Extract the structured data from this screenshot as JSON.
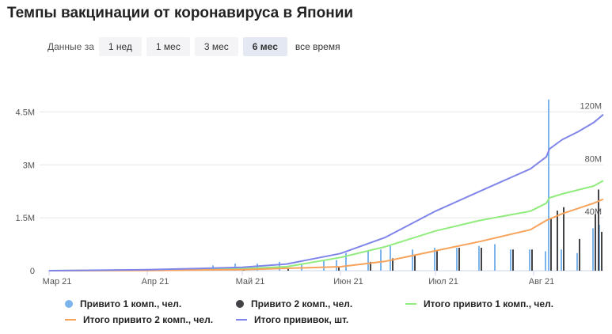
{
  "header": {
    "title": "Темпы вакцинации от коронавируса в Японии"
  },
  "range_selector": {
    "label": "Данные за",
    "options": [
      "1 нед",
      "1 мес",
      "3 мес",
      "6 мес",
      "все время"
    ],
    "selected": "6 мес"
  },
  "colors": {
    "dose1": "#7cb5ec",
    "dose2": "#434348",
    "total1": "#90ed7d",
    "total2": "#f7a35c",
    "all": "#8085e9",
    "grid": "#e6e6e6",
    "axis_text": "#555555"
  },
  "chart_data": {
    "type": "bar+line",
    "x_ticks": [
      "Мар 21",
      "Апр 21",
      "Май 21",
      "Июн 21",
      "Июл 21",
      "Авг 21"
    ],
    "x_range": [
      "2021-03-01",
      "2021-08-23"
    ],
    "y_left": {
      "ticks": [
        "0",
        "1.5M",
        "3M",
        "4.5M"
      ],
      "values": [
        0,
        1500000,
        3000000,
        4500000
      ],
      "range": [
        0,
        4800000
      ]
    },
    "y_right": {
      "ticks": [
        "40M",
        "80M",
        "120M"
      ],
      "values": [
        40000000,
        80000000,
        120000000
      ],
      "range": [
        0,
        128000000
      ]
    },
    "legend": [
      {
        "key": "dose1",
        "label": "Привито 1 комп., чел.",
        "symbol": "dot"
      },
      {
        "key": "dose2",
        "label": "Привито 2 комп., чел.",
        "symbol": "dot"
      },
      {
        "key": "total1",
        "label": "Итого привито 1 комп., чел.",
        "symbol": "line"
      },
      {
        "key": "total2",
        "label": "Итого привито 2 комп., чел.",
        "symbol": "line"
      },
      {
        "key": "all",
        "label": "Итого прививок, шт.",
        "symbol": "line"
      }
    ],
    "series": [
      {
        "name": "Привито 1 комп., чел.",
        "key": "dose1",
        "axis": "left",
        "kind": "bar",
        "points": [
          [
            "2021-03-01",
            5000
          ],
          [
            "2021-03-15",
            20000
          ],
          [
            "2021-04-01",
            30000
          ],
          [
            "2021-04-15",
            60000
          ],
          [
            "2021-04-22",
            150000
          ],
          [
            "2021-04-29",
            200000
          ],
          [
            "2021-05-06",
            200000
          ],
          [
            "2021-05-13",
            250000
          ],
          [
            "2021-05-20",
            200000
          ],
          [
            "2021-05-27",
            280000
          ],
          [
            "2021-05-31",
            300000
          ],
          [
            "2021-06-03",
            500000
          ],
          [
            "2021-06-10",
            550000
          ],
          [
            "2021-06-14",
            600000
          ],
          [
            "2021-06-17",
            700000
          ],
          [
            "2021-06-24",
            600000
          ],
          [
            "2021-07-01",
            650000
          ],
          [
            "2021-07-08",
            650000
          ],
          [
            "2021-07-15",
            700000
          ],
          [
            "2021-07-20",
            750000
          ],
          [
            "2021-07-25",
            600000
          ],
          [
            "2021-07-31",
            600000
          ],
          [
            "2021-08-05",
            550000
          ],
          [
            "2021-08-06",
            4850000
          ],
          [
            "2021-08-10",
            600000
          ],
          [
            "2021-08-15",
            500000
          ],
          [
            "2021-08-20",
            1200000
          ],
          [
            "2021-08-22",
            1300000
          ]
        ]
      },
      {
        "name": "Привито 2 комп., чел.",
        "key": "dose2",
        "axis": "left",
        "kind": "bar",
        "points": [
          [
            "2021-03-01",
            3000
          ],
          [
            "2021-03-15",
            10000
          ],
          [
            "2021-04-01",
            20000
          ],
          [
            "2021-04-15",
            30000
          ],
          [
            "2021-05-01",
            50000
          ],
          [
            "2021-05-15",
            80000
          ],
          [
            "2021-05-31",
            120000
          ],
          [
            "2021-06-10",
            250000
          ],
          [
            "2021-06-17",
            350000
          ],
          [
            "2021-06-24",
            450000
          ],
          [
            "2021-07-01",
            550000
          ],
          [
            "2021-07-08",
            650000
          ],
          [
            "2021-07-15",
            650000
          ],
          [
            "2021-07-25",
            600000
          ],
          [
            "2021-07-31",
            600000
          ],
          [
            "2021-08-06",
            1500000
          ],
          [
            "2021-08-08",
            1700000
          ],
          [
            "2021-08-10",
            1800000
          ],
          [
            "2021-08-15",
            900000
          ],
          [
            "2021-08-20",
            1600000
          ],
          [
            "2021-08-21",
            2300000
          ],
          [
            "2021-08-22",
            1100000
          ]
        ]
      },
      {
        "name": "Итого привито 1 комп., чел.",
        "key": "total1",
        "axis": "right",
        "kind": "line",
        "points": [
          [
            "2021-03-01",
            0
          ],
          [
            "2021-04-01",
            500000
          ],
          [
            "2021-05-01",
            1500000
          ],
          [
            "2021-05-15",
            3000000
          ],
          [
            "2021-06-01",
            10000000
          ],
          [
            "2021-06-15",
            18000000
          ],
          [
            "2021-07-01",
            30000000
          ],
          [
            "2021-07-15",
            38000000
          ],
          [
            "2021-07-31",
            45000000
          ],
          [
            "2021-08-05",
            51000000
          ],
          [
            "2021-08-06",
            55000000
          ],
          [
            "2021-08-10",
            58000000
          ],
          [
            "2021-08-20",
            64000000
          ],
          [
            "2021-08-23",
            68000000
          ]
        ]
      },
      {
        "name": "Итого привито 2 комп., чел.",
        "key": "total2",
        "axis": "right",
        "kind": "line",
        "points": [
          [
            "2021-03-01",
            0
          ],
          [
            "2021-04-01",
            200000
          ],
          [
            "2021-05-01",
            800000
          ],
          [
            "2021-06-01",
            3000000
          ],
          [
            "2021-06-15",
            7000000
          ],
          [
            "2021-07-01",
            15000000
          ],
          [
            "2021-07-15",
            22000000
          ],
          [
            "2021-07-31",
            31000000
          ],
          [
            "2021-08-05",
            38000000
          ],
          [
            "2021-08-10",
            43000000
          ],
          [
            "2021-08-20",
            51000000
          ],
          [
            "2021-08-23",
            54000000
          ]
        ]
      },
      {
        "name": "Итого прививок, шт.",
        "key": "all",
        "axis": "right",
        "kind": "line",
        "points": [
          [
            "2021-03-01",
            0
          ],
          [
            "2021-04-01",
            700000
          ],
          [
            "2021-05-01",
            2500000
          ],
          [
            "2021-05-15",
            5000000
          ],
          [
            "2021-06-01",
            13000000
          ],
          [
            "2021-06-15",
            25000000
          ],
          [
            "2021-07-01",
            45000000
          ],
          [
            "2021-07-15",
            60000000
          ],
          [
            "2021-07-31",
            77000000
          ],
          [
            "2021-08-05",
            86000000
          ],
          [
            "2021-08-06",
            92000000
          ],
          [
            "2021-08-10",
            99000000
          ],
          [
            "2021-08-15",
            105000000
          ],
          [
            "2021-08-20",
            112000000
          ],
          [
            "2021-08-23",
            118000000
          ]
        ]
      }
    ]
  }
}
